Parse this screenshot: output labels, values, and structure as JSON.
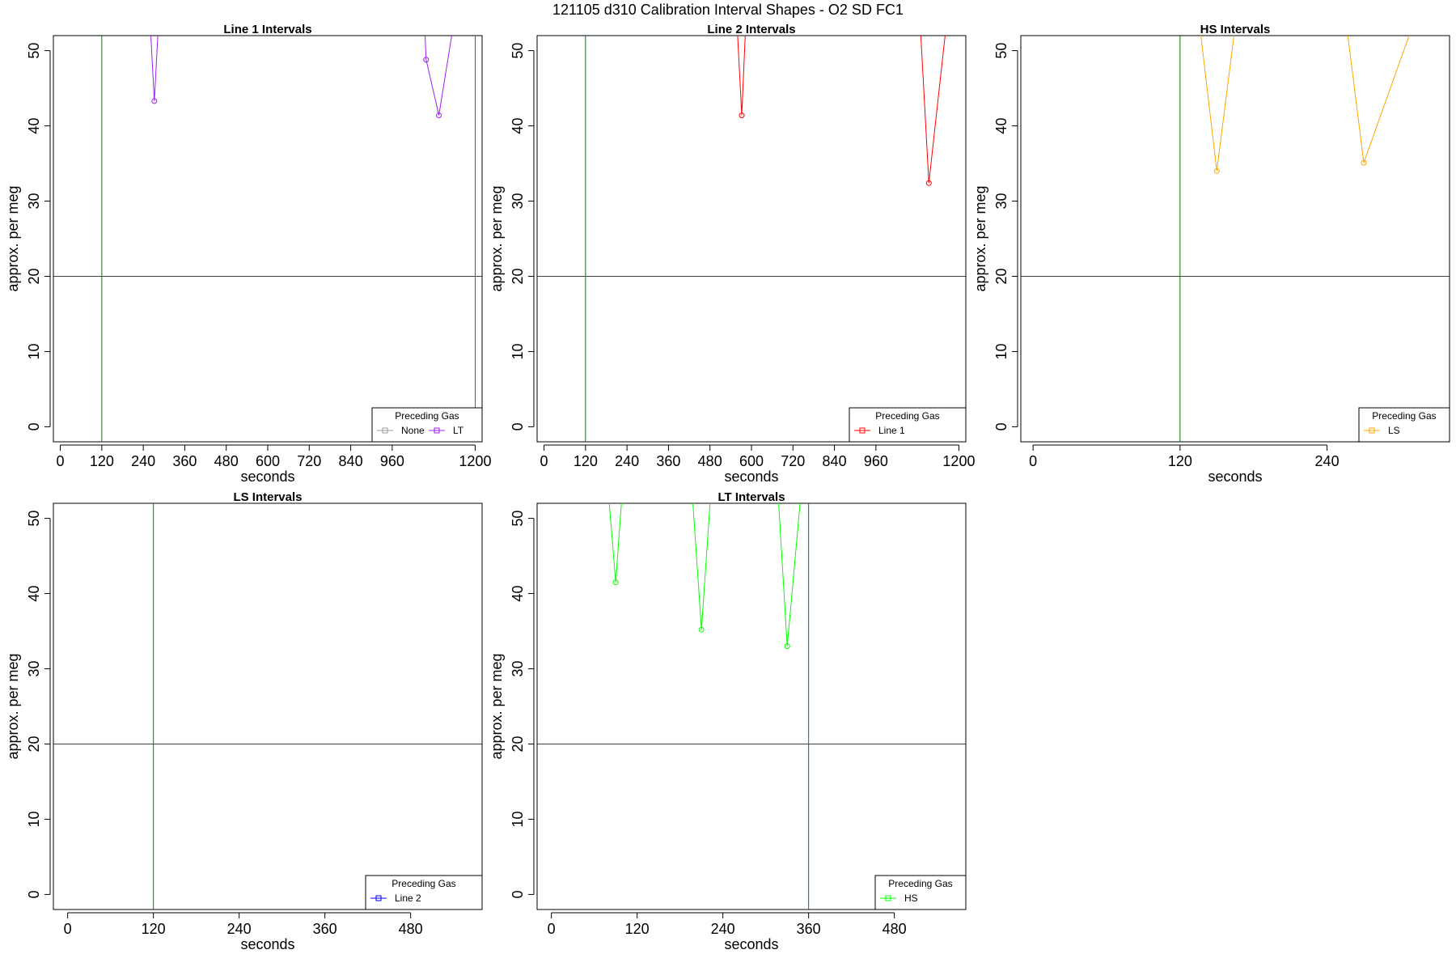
{
  "figure": {
    "title": "121105   d310   Calibration Interval Shapes - O2 SD FC1"
  },
  "chart_data": [
    {
      "type": "line",
      "title": "Line 1 Intervals",
      "xlabel": "seconds",
      "ylabel": "approx. per meg",
      "xlim": [
        -20,
        1220
      ],
      "ylim": [
        -2,
        52
      ],
      "xticks": [
        0,
        120,
        240,
        360,
        480,
        600,
        720,
        840,
        960,
        1200
      ],
      "yticks": [
        0,
        10,
        20,
        30,
        40,
        50
      ],
      "hline": 20,
      "vline": 120,
      "legend": {
        "title": "Preceding Gas",
        "position": "bottom-right",
        "entries": [
          "None",
          "LT"
        ]
      },
      "series": [
        {
          "name": "LT",
          "color": "#a020f0",
          "lines": [
            [
              [
                262,
                52
              ],
              [
                272,
                43.3
              ],
              [
                282,
                52
              ]
            ],
            [
              [
                1055,
                52
              ],
              [
                1058,
                48.8
              ],
              [
                1095,
                41.4
              ],
              [
                1132,
                52
              ]
            ],
            [
              [
                1200,
                52
              ],
              [
                1200,
                1.5
              ]
            ]
          ],
          "points": [
            [
              272,
              43.3
            ],
            [
              1058,
              48.8
            ],
            [
              1095,
              41.4
            ]
          ]
        }
      ]
    },
    {
      "type": "line",
      "title": "Line 2 Intervals",
      "xlabel": "seconds",
      "ylabel": "approx. per meg",
      "xlim": [
        -20,
        1220
      ],
      "ylim": [
        -2,
        52
      ],
      "xticks": [
        0,
        120,
        240,
        360,
        480,
        600,
        720,
        840,
        960,
        1200
      ],
      "yticks": [
        0,
        10,
        20,
        30,
        40,
        50
      ],
      "hline": 20,
      "vline": 120,
      "legend": {
        "title": "Preceding Gas",
        "position": "bottom-right",
        "entries": [
          "Line 1"
        ]
      },
      "series": [
        {
          "name": "Line 1",
          "color": "#ff0000",
          "lines": [
            [
              [
                560,
                52
              ],
              [
                572,
                41.4
              ],
              [
                582,
                52
              ]
            ],
            [
              [
                1090,
                52
              ],
              [
                1113,
                32.4
              ],
              [
                1160,
                52
              ]
            ]
          ],
          "points": [
            [
              572,
              41.4
            ],
            [
              1113,
              32.4
            ]
          ]
        }
      ]
    },
    {
      "type": "line",
      "title": "HS Intervals",
      "xlabel": "seconds",
      "ylabel": "approx. per meg",
      "xlim": [
        -10,
        340
      ],
      "ylim": [
        -2,
        52
      ],
      "xticks": [
        0,
        120,
        240
      ],
      "yticks": [
        0,
        10,
        20,
        30,
        40,
        50
      ],
      "hline": 20,
      "vline": 120,
      "legend": {
        "title": "Preceding Gas",
        "position": "bottom-right",
        "entries": [
          "LS"
        ]
      },
      "series": [
        {
          "name": "LS",
          "color": "#ffa500",
          "lines": [
            [
              [
                137,
                52
              ],
              [
                150,
                34
              ],
              [
                164,
                52
              ]
            ],
            [
              [
                257,
                52
              ],
              [
                270,
                35.1
              ],
              [
                307,
                52
              ]
            ]
          ],
          "points": [
            [
              150,
              34
            ],
            [
              270,
              35.1
            ]
          ]
        }
      ]
    },
    {
      "type": "line",
      "title": "LS Intervals",
      "xlabel": "seconds",
      "ylabel": "approx. per meg",
      "xlim": [
        -20,
        580
      ],
      "ylim": [
        -2,
        52
      ],
      "xticks": [
        0,
        120,
        240,
        360,
        480
      ],
      "yticks": [
        0,
        10,
        20,
        30,
        40,
        50
      ],
      "hline": 20,
      "vline": 120,
      "legend": {
        "title": "Preceding Gas",
        "position": "bottom-right",
        "entries": [
          "Line 2"
        ]
      },
      "series": [
        {
          "name": "Line 2",
          "color": "#0000ff",
          "lines": [],
          "points": []
        }
      ]
    },
    {
      "type": "line",
      "title": "LT Intervals",
      "xlabel": "seconds",
      "ylabel": "approx. per meg",
      "xlim": [
        -20,
        580
      ],
      "ylim": [
        -2,
        52
      ],
      "xticks": [
        0,
        120,
        240,
        360,
        480
      ],
      "yticks": [
        0,
        10,
        20,
        30,
        40,
        50
      ],
      "hline": 20,
      "vline": 360,
      "legend": {
        "title": "Preceding Gas",
        "position": "bottom-right",
        "entries": [
          "HS"
        ]
      },
      "series": [
        {
          "name": "HS",
          "color": "#00ff00",
          "lines": [
            [
              [
                81,
                52
              ],
              [
                90,
                41.5
              ],
              [
                98,
                52
              ]
            ],
            [
              [
                198,
                52
              ],
              [
                210,
                35.2
              ],
              [
                222,
                52
              ]
            ],
            [
              [
                318,
                52
              ],
              [
                330,
                33
              ],
              [
                348,
                52
              ]
            ]
          ],
          "points": [
            [
              90,
              41.5
            ],
            [
              210,
              35.2
            ],
            [
              330,
              33
            ]
          ]
        }
      ]
    }
  ]
}
